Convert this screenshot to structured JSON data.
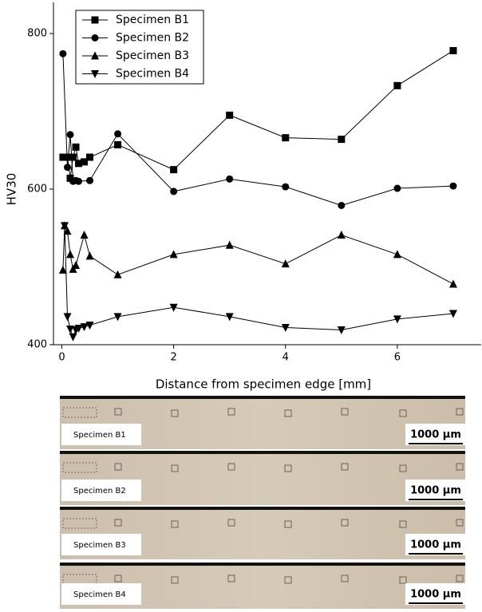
{
  "chart_data": {
    "type": "line",
    "x_label": "Distance from specimen edge [mm]",
    "y_label": "HV30",
    "xlim": [
      -0.15,
      7.5
    ],
    "ylim": [
      400,
      840
    ],
    "xticks": [
      0,
      2,
      4,
      6
    ],
    "yticks": [
      400,
      600,
      800
    ],
    "legend": "top-left",
    "series": [
      {
        "name": "Specimen B1",
        "color": "#000000",
        "marker": "square",
        "x": [
          0.02,
          0.1,
          0.15,
          0.2,
          0.25,
          0.3,
          0.4,
          0.5,
          1,
          2,
          3,
          4,
          5,
          6,
          7
        ],
        "values": [
          641,
          641,
          614,
          641,
          654,
          633,
          635,
          641,
          657,
          625,
          695,
          666,
          664,
          733,
          778
        ]
      },
      {
        "name": "Specimen B2",
        "color": "#000000",
        "marker": "circle",
        "x": [
          0.02,
          0.1,
          0.15,
          0.2,
          0.25,
          0.3,
          0.5,
          1,
          2,
          3,
          4,
          5,
          6,
          7
        ],
        "values": [
          774,
          628,
          670,
          610,
          611,
          610,
          611,
          671,
          597,
          613,
          603,
          579,
          601,
          604
        ]
      },
      {
        "name": "Specimen B3",
        "color": "#000000",
        "marker": "triangle-up",
        "x": [
          0.02,
          0.05,
          0.1,
          0.15,
          0.2,
          0.25,
          0.4,
          0.5,
          1,
          2,
          3,
          4,
          5,
          6,
          7
        ],
        "values": [
          496,
          553,
          546,
          516,
          497,
          502,
          541,
          514,
          490,
          516,
          528,
          504,
          541,
          516,
          478
        ]
      },
      {
        "name": "Specimen B4",
        "color": "#000000",
        "marker": "triangle-down",
        "x": [
          0.05,
          0.1,
          0.15,
          0.2,
          0.25,
          0.3,
          0.4,
          0.5,
          1,
          2,
          3,
          4,
          5,
          6,
          7
        ],
        "values": [
          553,
          436,
          420,
          410,
          419,
          421,
          423,
          425,
          436,
          448,
          436,
          422,
          419,
          433,
          440
        ]
      }
    ]
  },
  "micrographs": [
    {
      "label": "Specimen B1",
      "scale": "1000 µm"
    },
    {
      "label": "Specimen B2",
      "scale": "1000 µm"
    },
    {
      "label": "Specimen B3",
      "scale": "1000 µm"
    },
    {
      "label": "Specimen B4",
      "scale": "1000 µm"
    }
  ]
}
